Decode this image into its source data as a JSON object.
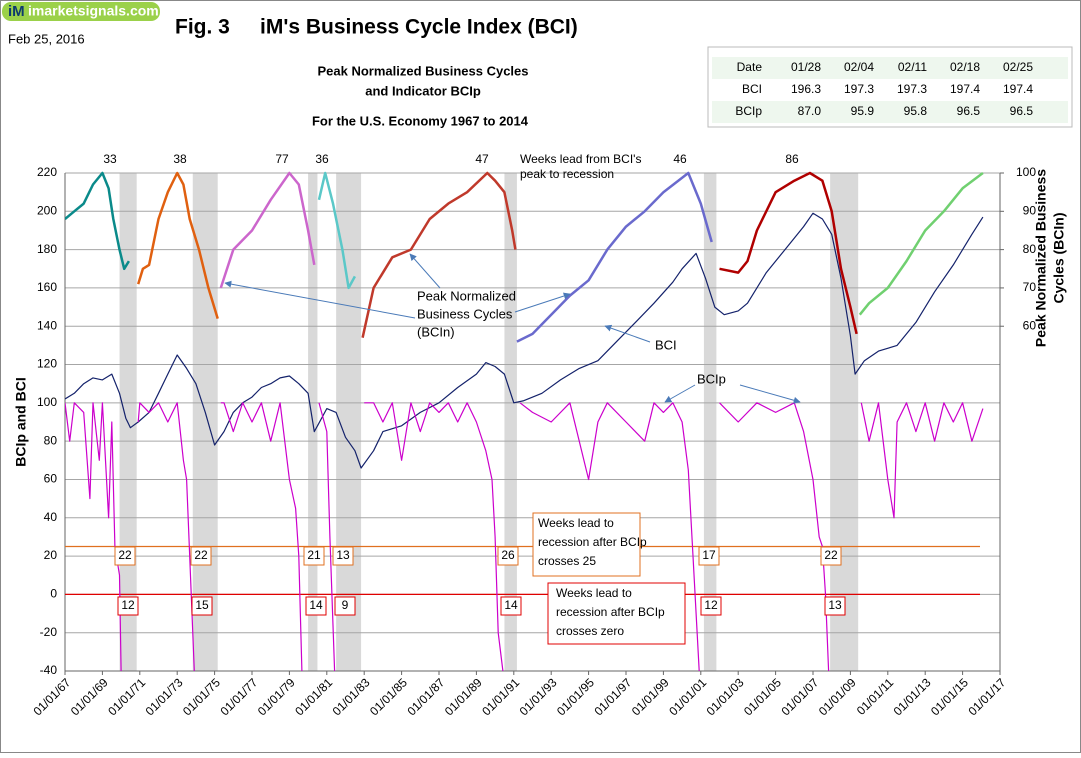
{
  "chart_data": {
    "type": "line",
    "logo": {
      "mark": "iM",
      "site": "imarketsignals.com"
    },
    "date": "Feb 25, 2016",
    "fig": "Fig. 3",
    "title": "iM's Business Cycle Index (BCI)",
    "subtitle": [
      "Peak Normalized Business Cycles",
      "and Indicator BCIp"
    ],
    "subtitle2": "For the U.S. Economy 1967  to 2014",
    "ylabel": "BCIp  and  BCI",
    "y2label": [
      "Peak Normalized Business",
      "Cycles (BCIn)"
    ],
    "table": {
      "header": [
        "Date",
        "01/28",
        "02/04",
        "02/11",
        "02/18",
        "02/25"
      ],
      "rows": [
        [
          "BCI",
          "196.3",
          "197.3",
          "197.3",
          "197.4",
          "197.4"
        ],
        [
          "BCIp",
          "87.0",
          "95.9",
          "95.8",
          "96.5",
          "96.5"
        ]
      ]
    },
    "xlim": [
      "1967-01",
      "2017-01"
    ],
    "xticks": [
      {
        "value": "1967-01",
        "label": "01/01/67"
      },
      {
        "value": "1969-01",
        "label": "01/01/69"
      },
      {
        "value": "1971-01",
        "label": "01/01/71"
      },
      {
        "value": "1973-01",
        "label": "01/01/73"
      },
      {
        "value": "1975-01",
        "label": "01/01/75"
      },
      {
        "value": "1977-01",
        "label": "01/01/77"
      },
      {
        "value": "1979-01",
        "label": "01/01/79"
      },
      {
        "value": "1981-01",
        "label": "01/01/81"
      },
      {
        "value": "1983-01",
        "label": "01/01/83"
      },
      {
        "value": "1985-01",
        "label": "01/01/85"
      },
      {
        "value": "1987-01",
        "label": "01/01/87"
      },
      {
        "value": "1989-01",
        "label": "01/01/89"
      },
      {
        "value": "1991-01",
        "label": "01/01/91"
      },
      {
        "value": "1993-01",
        "label": "01/01/93"
      },
      {
        "value": "1995-01",
        "label": "01/01/95"
      },
      {
        "value": "1997-01",
        "label": "01/01/97"
      },
      {
        "value": "1999-01",
        "label": "01/01/99"
      },
      {
        "value": "2001-01",
        "label": "01/01/01"
      },
      {
        "value": "2003-01",
        "label": "01/01/03"
      },
      {
        "value": "2005-01",
        "label": "01/01/05"
      },
      {
        "value": "2007-01",
        "label": "01/01/07"
      },
      {
        "value": "2009-01",
        "label": "01/01/09"
      },
      {
        "value": "2011-01",
        "label": "01/01/11"
      },
      {
        "value": "2013-01",
        "label": "01/01/13"
      },
      {
        "value": "2015-01",
        "label": "01/01/15"
      },
      {
        "value": "2017-01",
        "label": "01/01/17"
      }
    ],
    "ylim": [
      -40,
      220
    ],
    "yticks": [
      -40,
      -20,
      0,
      20,
      40,
      60,
      80,
      100,
      120,
      140,
      160,
      180,
      200,
      220
    ],
    "y2lim": [
      -30,
      100
    ],
    "y2ticks": [
      60,
      70,
      80,
      90,
      100
    ],
    "grid": true,
    "recessions": [
      [
        "1969-12",
        "1970-11"
      ],
      [
        "1973-11",
        "1975-03"
      ],
      [
        "1980-01",
        "1980-07"
      ],
      [
        "1981-07",
        "1982-11"
      ],
      [
        "1990-07",
        "1991-03"
      ],
      [
        "2001-03",
        "2001-11"
      ],
      [
        "2007-12",
        "2009-06"
      ]
    ],
    "recession_color": "#d9d9d9",
    "series": [
      {
        "name": "BCI",
        "color": "#14226b",
        "x": [
          "1967-01",
          "1967-07",
          "1968-01",
          "1968-07",
          "1969-01",
          "1969-07",
          "1969-12",
          "1970-04",
          "1970-07",
          "1970-12",
          "1971-07",
          "1972-01",
          "1972-07",
          "1973-01",
          "1973-07",
          "1974-01",
          "1974-07",
          "1975-01",
          "1975-07",
          "1976-01",
          "1976-07",
          "1977-01",
          "1977-07",
          "1978-01",
          "1978-07",
          "1979-01",
          "1979-07",
          "1980-01",
          "1980-05",
          "1980-07",
          "1981-01",
          "1981-07",
          "1982-01",
          "1982-07",
          "1982-11",
          "1983-07",
          "1984-01",
          "1985-01",
          "1986-01",
          "1987-01",
          "1988-01",
          "1989-01",
          "1989-07",
          "1990-01",
          "1990-07",
          "1991-01",
          "1991-07",
          "1992-07",
          "1993-07",
          "1994-07",
          "1995-07",
          "1996-07",
          "1997-07",
          "1998-07",
          "1999-07",
          "2000-01",
          "2000-10",
          "2001-04",
          "2001-10",
          "2002-04",
          "2003-01",
          "2003-07",
          "2004-07",
          "2005-07",
          "2006-07",
          "2007-01",
          "2007-07",
          "2008-01",
          "2008-07",
          "2009-01",
          "2009-04",
          "2009-10",
          "2010-07",
          "2011-07",
          "2012-07",
          "2013-07",
          "2014-07",
          "2015-07",
          "2016-02"
        ],
        "values": [
          102,
          105,
          110,
          113,
          112,
          115,
          105,
          92,
          87,
          90,
          95,
          105,
          115,
          125,
          118,
          110,
          95,
          78,
          85,
          95,
          100,
          103,
          108,
          110,
          113,
          114,
          110,
          105,
          85,
          88,
          97,
          95,
          82,
          75,
          66,
          75,
          85,
          88,
          95,
          100,
          108,
          115,
          121,
          119,
          115,
          100,
          101,
          105,
          112,
          118,
          122,
          132,
          142,
          152,
          163,
          170,
          178,
          165,
          150,
          146,
          148,
          152,
          168,
          180,
          192,
          199,
          196,
          188,
          165,
          135,
          115,
          122,
          127,
          130,
          142,
          158,
          172,
          188,
          197
        ]
      },
      {
        "name": "BCIp",
        "color": "#cc00cc",
        "x": [
          "1967-01",
          "1967-04",
          "1967-07",
          "1968-01",
          "1968-05",
          "1968-07",
          "1968-11",
          "1969-01",
          "1969-05",
          "1969-07",
          "1969-09",
          "1969-12",
          "1970-01",
          null,
          "1970-12",
          "1971-01",
          "1971-07",
          "1972-01",
          "1972-07",
          "1973-01",
          "1973-05",
          "1973-07",
          "1973-09",
          "1973-12",
          null,
          "1975-05",
          "1975-07",
          "1976-01",
          "1976-07",
          "1977-01",
          "1977-07",
          "1978-01",
          "1978-07",
          "1979-01",
          "1979-05",
          "1979-07",
          "1979-09",
          null,
          "1980-08",
          "1981-01",
          "1981-03",
          "1981-06",
          null,
          "1983-01",
          "1983-07",
          "1984-01",
          "1984-07",
          "1985-01",
          "1985-07",
          "1986-01",
          "1986-07",
          "1987-01",
          "1987-07",
          "1988-01",
          "1988-07",
          "1989-01",
          "1989-07",
          "1989-11",
          "1990-01",
          "1990-03",
          "1990-06",
          null,
          "1991-05",
          "1992-01",
          "1993-01",
          "1994-01",
          "1995-01",
          "1995-07",
          "1996-01",
          "1997-01",
          "1998-01",
          "1998-07",
          "1999-01",
          "1999-07",
          "2000-01",
          "2000-05",
          "2000-08",
          "2000-12",
          null,
          "2002-01",
          "2003-01",
          "2004-01",
          "2005-01",
          "2006-01",
          "2006-07",
          "2007-01",
          "2007-05",
          "2007-07",
          "2007-09",
          "2007-11",
          null,
          "2009-08",
          "2010-01",
          "2010-07",
          "2011-01",
          "2011-05",
          "2011-07",
          "2012-01",
          "2012-07",
          "2013-01",
          "2013-07",
          "2014-01",
          "2014-07",
          "2015-01",
          "2015-07",
          "2016-02"
        ],
        "values": [
          100,
          80,
          100,
          95,
          50,
          100,
          70,
          100,
          40,
          90,
          25,
          10,
          -40,
          null,
          90,
          100,
          95,
          100,
          90,
          100,
          70,
          60,
          20,
          -40,
          null,
          100,
          100,
          85,
          100,
          90,
          100,
          80,
          100,
          60,
          45,
          20,
          -40,
          null,
          100,
          85,
          30,
          -40,
          null,
          100,
          100,
          90,
          100,
          70,
          100,
          85,
          100,
          95,
          100,
          90,
          100,
          90,
          75,
          60,
          30,
          -20,
          -40,
          null,
          100,
          95,
          90,
          100,
          60,
          90,
          100,
          90,
          80,
          100,
          95,
          100,
          90,
          65,
          20,
          -40,
          null,
          100,
          90,
          100,
          95,
          100,
          85,
          60,
          30,
          25,
          0,
          -40,
          null,
          100,
          80,
          100,
          60,
          40,
          90,
          100,
          85,
          100,
          80,
          100,
          90,
          100,
          80,
          97
        ]
      }
    ],
    "bcin_segments": [
      {
        "color": "#0a8a8a",
        "x": [
          "1967-01",
          "1967-07",
          "1968-01",
          "1968-07",
          "1969-01",
          "1969-05",
          "1969-08",
          "1969-12",
          "1970-03",
          "1970-06"
        ],
        "values": [
          88,
          90,
          92,
          97,
          100,
          96,
          88,
          80,
          75,
          77
        ]
      },
      {
        "color": "#e06010",
        "x": [
          "1970-12",
          "1971-03",
          "1971-07",
          "1972-01",
          "1972-07",
          "1973-01",
          "1973-05",
          "1973-09",
          "1974-03",
          "1974-09",
          "1975-03"
        ],
        "values": [
          71,
          75,
          76,
          88,
          95,
          100,
          97,
          88,
          80,
          70,
          62
        ]
      },
      {
        "color": "#cc66cc",
        "x": [
          "1975-05",
          "1976-01",
          "1977-01",
          "1978-01",
          "1979-01",
          "1979-07",
          "1980-01",
          "1980-05"
        ],
        "values": [
          70,
          80,
          85,
          93,
          100,
          97,
          85,
          76
        ]
      },
      {
        "color": "#5bc8c8",
        "x": [
          "1980-08",
          "1980-12",
          "1981-05",
          "1981-11",
          "1982-03",
          "1982-07"
        ],
        "values": [
          93,
          100,
          92,
          80,
          70,
          73
        ]
      },
      {
        "color": "#c0392b",
        "x": [
          "1982-12",
          "1983-07",
          "1984-07",
          "1985-07",
          "1986-07",
          "1987-07",
          "1988-07",
          "1989-08",
          "1990-01",
          "1990-07",
          "1990-12",
          "1991-02"
        ],
        "values": [
          57,
          70,
          78,
          80,
          88,
          92,
          95,
          100,
          98,
          95,
          85,
          80
        ]
      },
      {
        "color": "#6a6acd",
        "x": [
          "1991-03",
          "1992-01",
          "1993-01",
          "1994-01",
          "1995-01",
          "1996-01",
          "1997-01",
          "1998-01",
          "1999-01",
          "2000-05",
          "2001-01",
          "2001-08"
        ],
        "values": [
          56,
          58,
          63,
          68,
          72,
          80,
          86,
          90,
          95,
          100,
          92,
          82
        ]
      },
      {
        "color": "#b00000",
        "x": [
          "2002-01",
          "2003-01",
          "2003-07",
          "2004-01",
          "2005-01",
          "2006-01",
          "2006-11",
          "2007-07",
          "2008-01",
          "2008-07",
          "2009-01",
          "2009-05"
        ],
        "values": [
          75,
          74,
          77,
          85,
          95,
          98,
          100,
          98,
          90,
          75,
          65,
          58
        ]
      },
      {
        "color": "#70d070",
        "x": [
          "2009-07",
          "2010-01",
          "2011-01",
          "2012-01",
          "2013-01",
          "2014-01",
          "2015-01",
          "2016-02"
        ],
        "values": [
          63,
          66,
          70,
          77,
          85,
          90,
          96,
          100
        ]
      }
    ],
    "reference_lines": [
      {
        "value": 25,
        "color": "#e07020"
      },
      {
        "value": 0,
        "color": "#e00000"
      }
    ],
    "lead_from_peak": [
      33,
      38,
      77,
      36,
      47,
      46,
      86
    ],
    "lead_from_peak_note": [
      "Weeks lead from BCI's",
      "peak to recession"
    ],
    "lead_at_25": [
      22,
      22,
      21,
      13,
      26,
      17,
      22
    ],
    "lead_at_25_note": [
      "Weeks lead to",
      "recession after BCIp",
      "crosses 25"
    ],
    "lead_at_0": [
      12,
      15,
      14,
      9,
      14,
      12,
      13
    ],
    "lead_at_0_note": [
      "Weeks lead  to",
      "recession after BCIp",
      "crosses zero"
    ],
    "bcin_note": [
      "Peak Normalized",
      "Business Cycles",
      "(BCIn)"
    ]
  }
}
